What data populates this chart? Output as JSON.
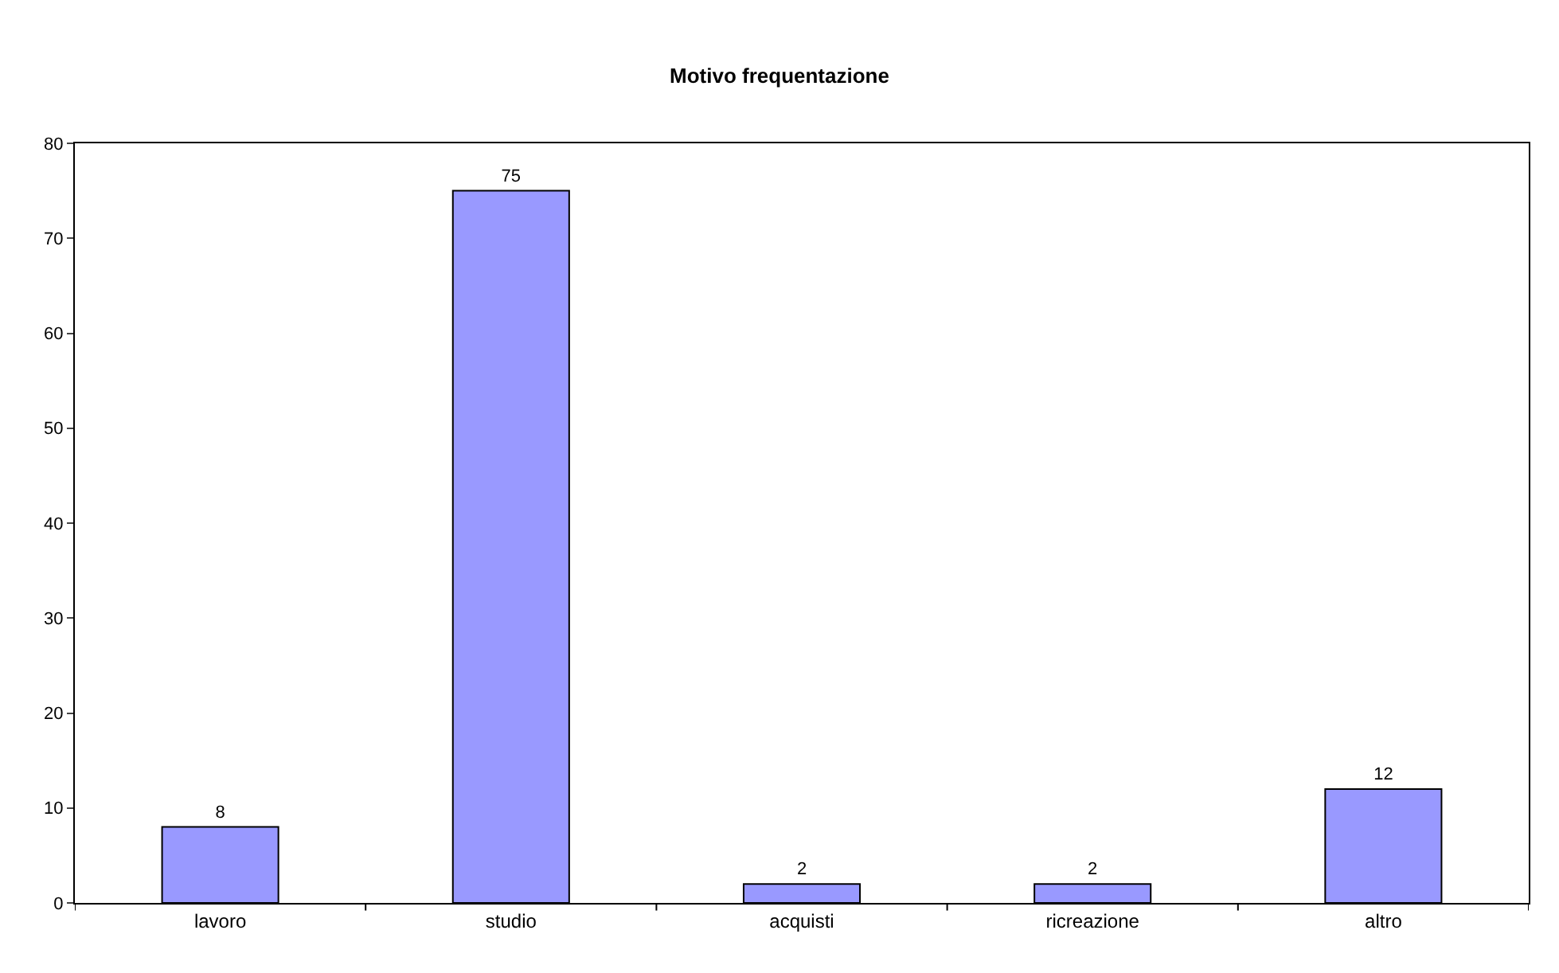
{
  "chart_data": {
    "type": "bar",
    "title": "Motivo frequentazione",
    "categories": [
      "lavoro",
      "studio",
      "acquisti",
      "ricreazione",
      "altro"
    ],
    "values": [
      8,
      75,
      2,
      2,
      12
    ],
    "color": "#9999ff",
    "ylim": [
      0,
      80
    ],
    "yticks": [
      0,
      10,
      20,
      30,
      40,
      50,
      60,
      70,
      80
    ],
    "grid": false,
    "legend": false,
    "data_labels": true
  }
}
